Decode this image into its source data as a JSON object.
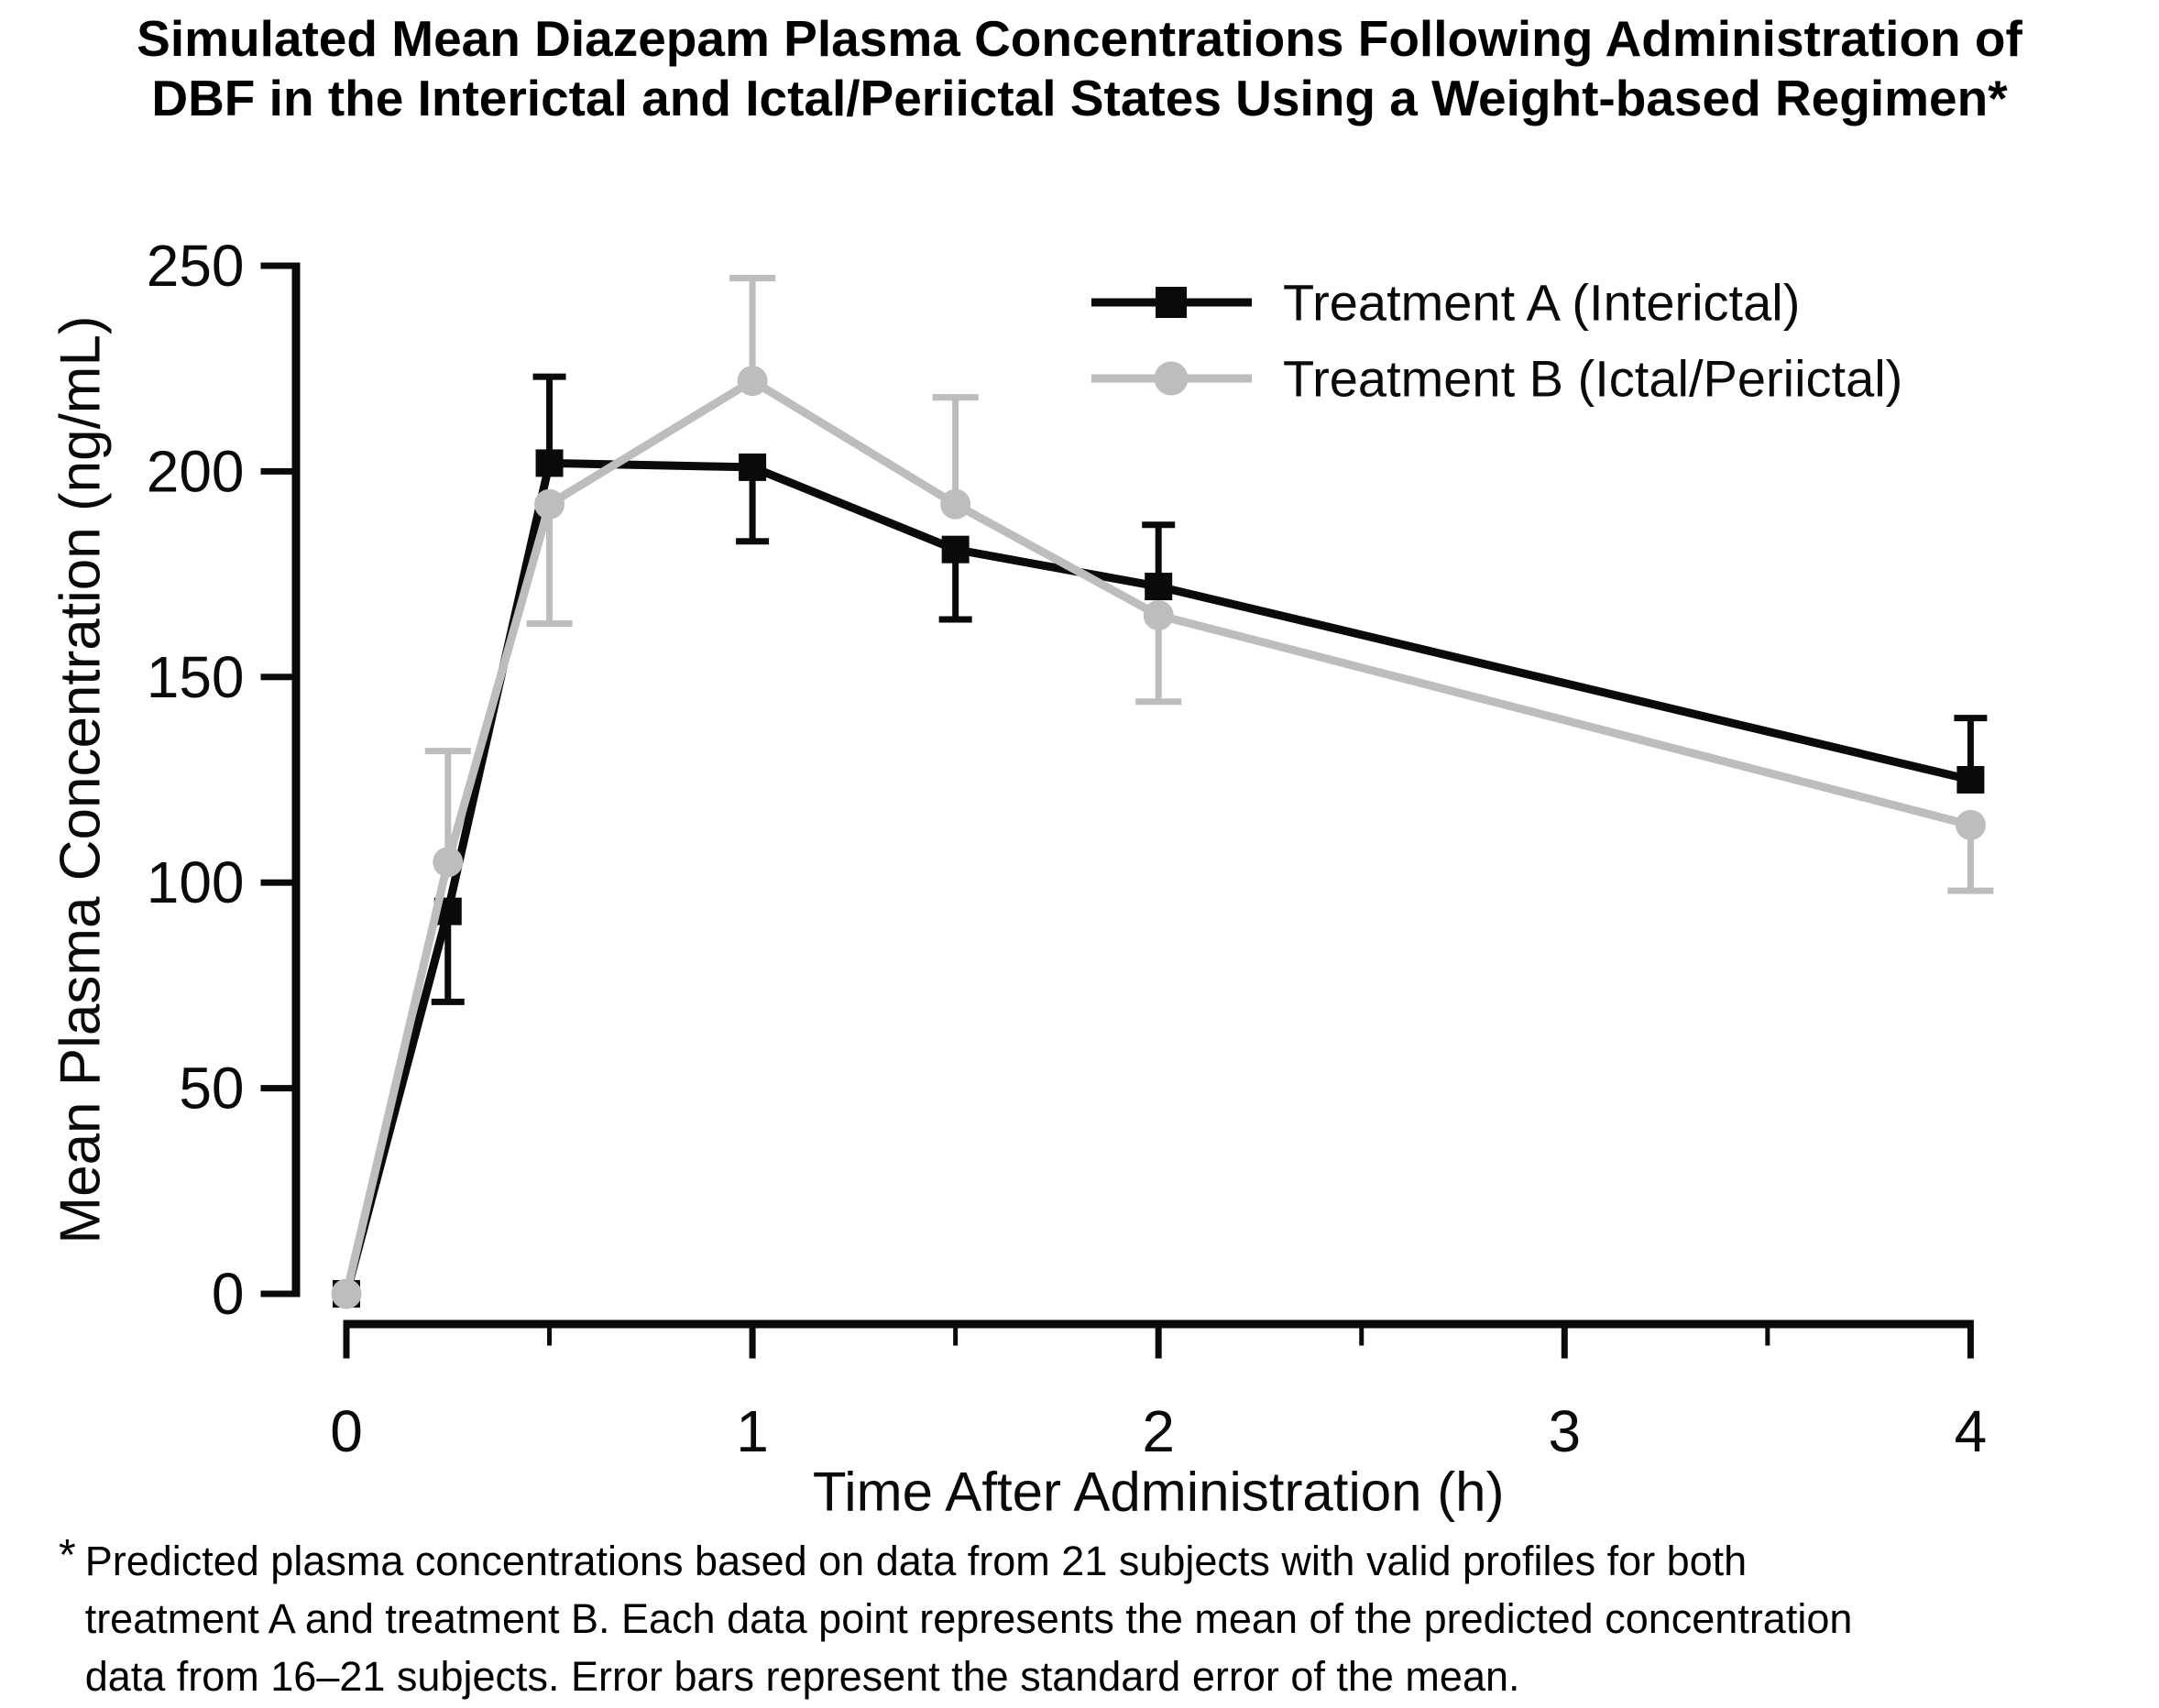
{
  "title": {
    "line1": "Simulated Mean Diazepam Plasma Concentrations Following Administration of",
    "line2": "DBF in the Interictal and Ictal/Periictal States Using a Weight-based Regimen*"
  },
  "chart_data": {
    "type": "line",
    "title": "Simulated Mean Diazepam Plasma Concentrations Following Administration of DBF in the Interictal and Ictal/Periictal States Using a Weight-based Regimen*",
    "xlabel": "Time After Administration (h)",
    "ylabel": "Mean Plasma Concentration (ng/mL)",
    "xlim": [
      0,
      4
    ],
    "ylim": [
      0,
      250
    ],
    "x_ticks": [
      0,
      1,
      2,
      3,
      4
    ],
    "x_minor_ticks": [
      0.5,
      1.5,
      2.5,
      3.5
    ],
    "y_ticks": [
      0,
      50,
      100,
      150,
      200,
      250
    ],
    "grid": "off",
    "legend_position": "top-right",
    "error_bar_meaning": "standard error of the mean (drawn one-sided)",
    "series": [
      {
        "name": "Treatment A (Interictal)",
        "marker": "square",
        "color": "#0a0a0a",
        "points": [
          {
            "t": 0,
            "y": 0,
            "err_lo": null,
            "err_hi": null
          },
          {
            "t": 0.25,
            "y": 93,
            "err_lo": 71,
            "err_hi": null
          },
          {
            "t": 0.5,
            "y": 202,
            "err_lo": null,
            "err_hi": 223
          },
          {
            "t": 1,
            "y": 201,
            "err_lo": 183,
            "err_hi": null
          },
          {
            "t": 1.5,
            "y": 181,
            "err_lo": 164,
            "err_hi": null
          },
          {
            "t": 2,
            "y": 172,
            "err_lo": null,
            "err_hi": 187
          },
          {
            "t": 4,
            "y": 125,
            "err_lo": null,
            "err_hi": 140
          }
        ]
      },
      {
        "name": "Treatment B (Ictal/Periictal)",
        "marker": "circle",
        "color": "#bdbdbd",
        "points": [
          {
            "t": 0,
            "y": 0,
            "err_lo": null,
            "err_hi": null
          },
          {
            "t": 0.25,
            "y": 105,
            "err_lo": null,
            "err_hi": 132
          },
          {
            "t": 0.5,
            "y": 192,
            "err_lo": 163,
            "err_hi": null
          },
          {
            "t": 1,
            "y": 222,
            "err_lo": null,
            "err_hi": 247
          },
          {
            "t": 1.5,
            "y": 192,
            "err_lo": null,
            "err_hi": 218
          },
          {
            "t": 2,
            "y": 165,
            "err_lo": 144,
            "err_hi": null
          },
          {
            "t": 4,
            "y": 114,
            "err_lo": 98,
            "err_hi": null
          }
        ]
      }
    ]
  },
  "footnote": {
    "marker": "*",
    "lines": [
      "Predicted plasma concentrations based on data from 21 subjects with valid profiles for both",
      "treatment A and treatment B. Each data point represents the mean of the predicted concentration",
      "data from 16–21 subjects. Error bars represent the standard error of the mean."
    ]
  },
  "colors": {
    "treatment_a": "#0a0a0a",
    "treatment_b": "#bdbdbd",
    "axis": "#0a0a0a",
    "background": "#ffffff"
  }
}
